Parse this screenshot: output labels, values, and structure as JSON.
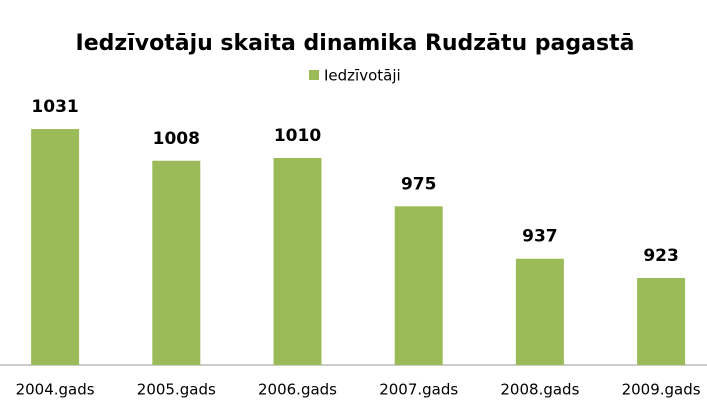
{
  "chart_data": {
    "type": "bar",
    "title": "Iedzīvotāju skaita dinamika Rudzātu pagastā",
    "categories": [
      "2004.gads",
      "2005.gads",
      "2006.gads",
      "2007.gads",
      "2008.gads",
      "2009.gads"
    ],
    "series": [
      {
        "name": "Iedzīvotāji",
        "color": "#9bbb59",
        "values": [
          1031,
          1008,
          1010,
          975,
          937,
          923
        ]
      }
    ],
    "ylim": [
      860,
      1060
    ],
    "legend": "top"
  }
}
